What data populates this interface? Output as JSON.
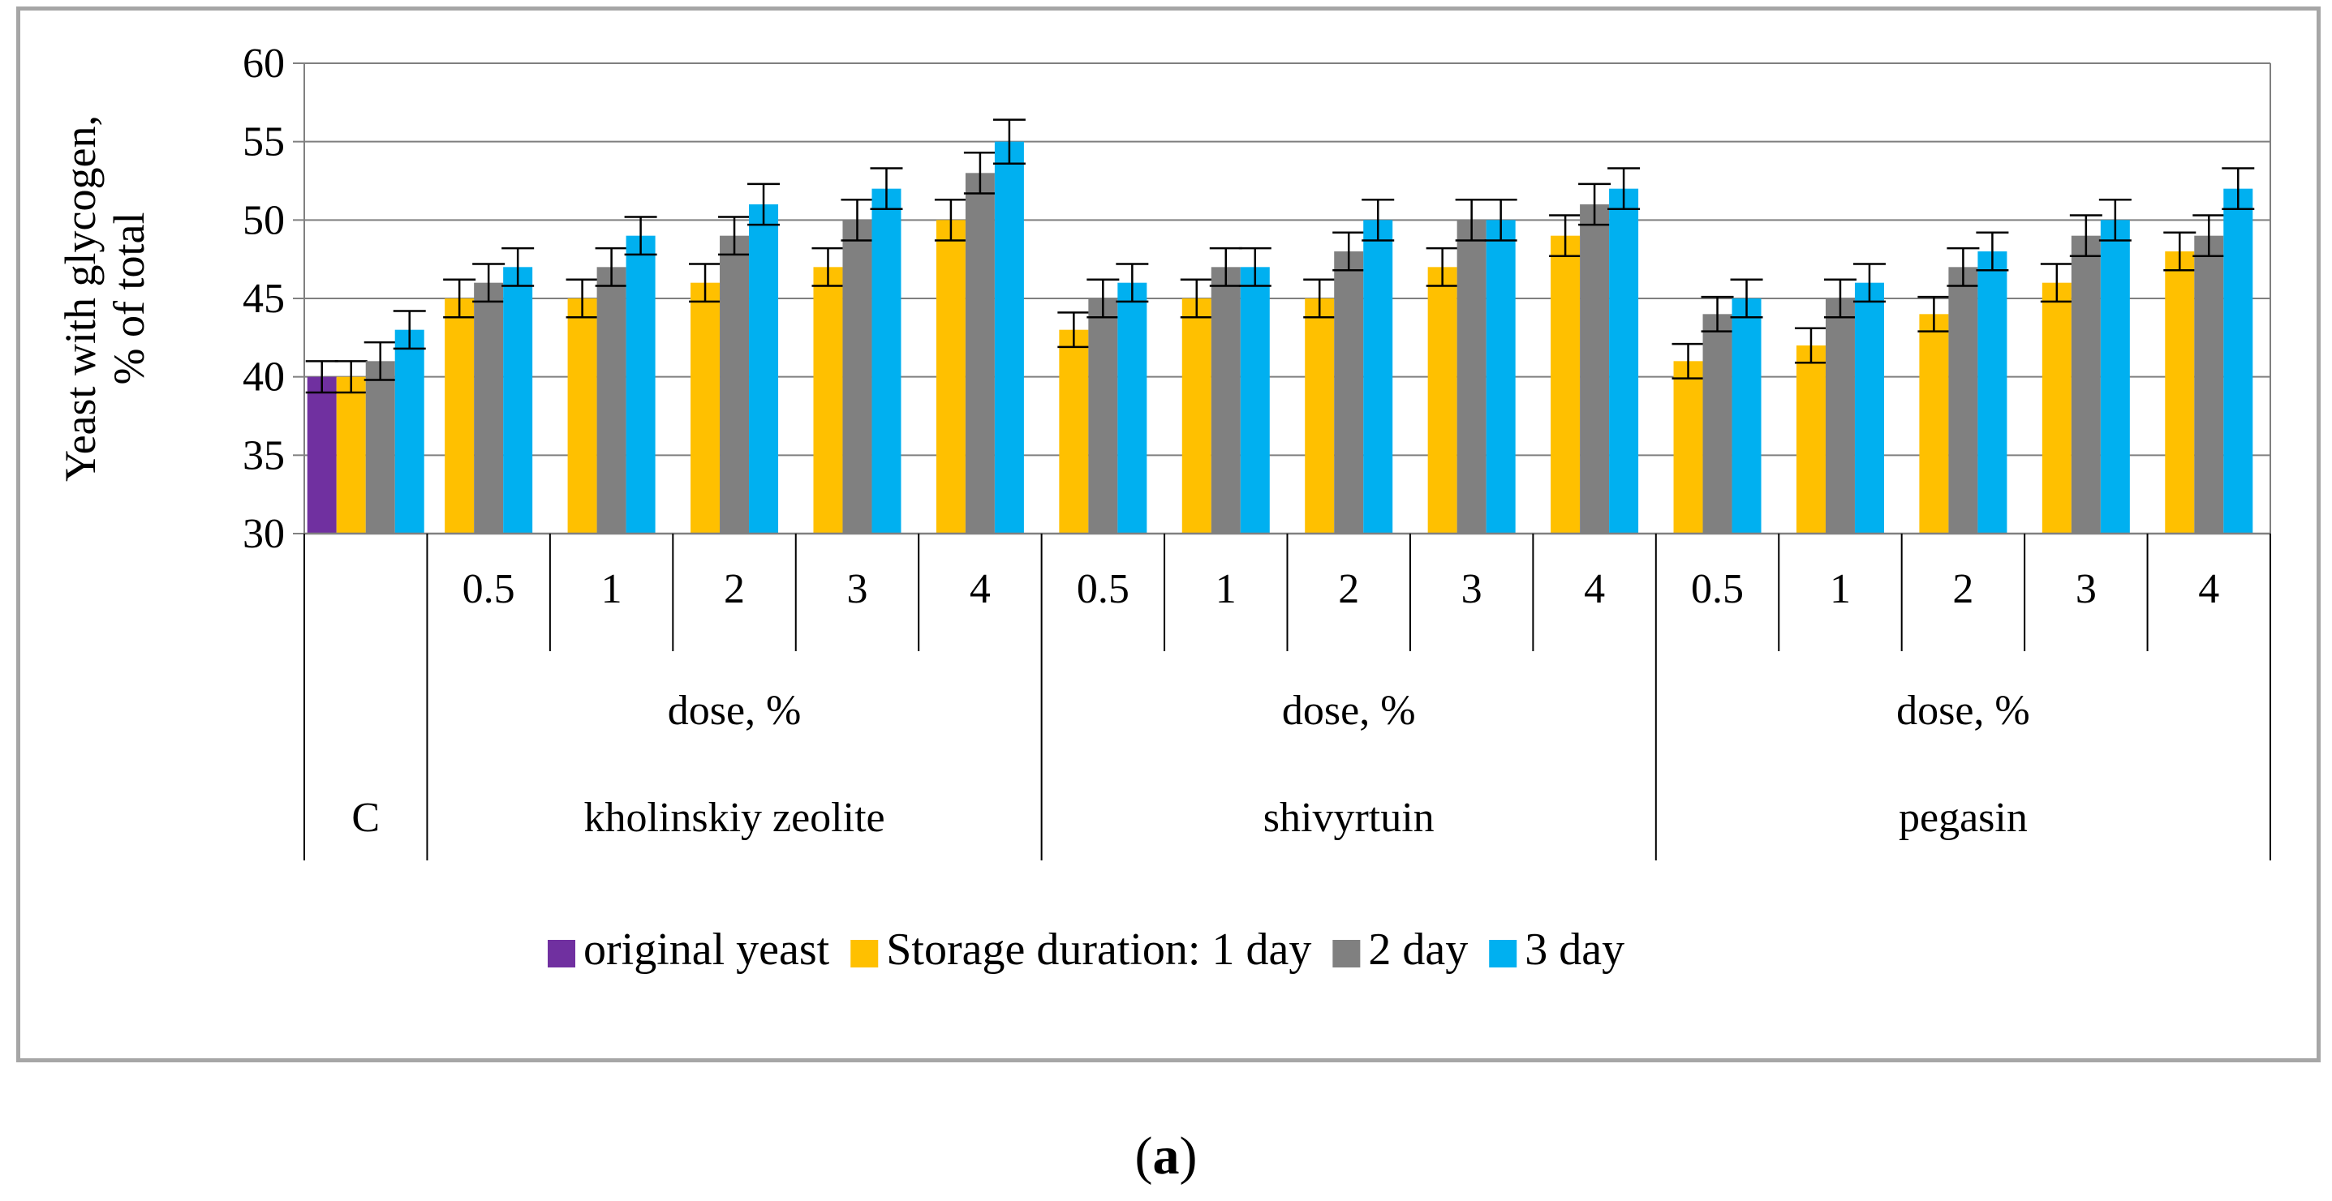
{
  "caption": {
    "open": "(",
    "letter": "a",
    "close": ")"
  },
  "chart_data": {
    "type": "bar",
    "title": "",
    "ylabel_line1": "Yeast with glycogen,",
    "ylabel_line2": "% of total",
    "ylim": [
      30,
      60
    ],
    "yticks": [
      30,
      35,
      40,
      45,
      50,
      55,
      60
    ],
    "grid": true,
    "legend_position": "bottom",
    "colors": {
      "original yeast": "#7030a0",
      "day1": "#ffc000",
      "day2": "#808080",
      "day3": "#00b0f0",
      "axis": "#808080",
      "grid": "#7f7f7f"
    },
    "legend": [
      {
        "key": "original",
        "label": "original yeast",
        "color": "#7030a0"
      },
      {
        "key": "day1",
        "label": "Storage duration: 1 day",
        "color": "#ffc000"
      },
      {
        "key": "day2",
        "label": "2 day",
        "color": "#808080"
      },
      {
        "key": "day3",
        "label": "3 day",
        "color": "#00b0f0"
      }
    ],
    "groups": [
      {
        "name": "C",
        "dose_label": "",
        "doses": [
          ""
        ]
      },
      {
        "name": "kholinskiy zeolite",
        "dose_label": "dose, %",
        "doses": [
          "0.5",
          "1",
          "2",
          "3",
          "4"
        ]
      },
      {
        "name": "shivyrtuin",
        "dose_label": "dose, %",
        "doses": [
          "0.5",
          "1",
          "2",
          "3",
          "4"
        ]
      },
      {
        "name": "pegasin",
        "dose_label": "dose, %",
        "doses": [
          "0.5",
          "1",
          "2",
          "3",
          "4"
        ]
      }
    ],
    "categories": [
      {
        "group": "C",
        "dose": "",
        "values": {
          "original": 40,
          "day1": 40,
          "day2": 41,
          "day3": 43
        },
        "errors": {
          "original": 1,
          "day1": 1,
          "day2": 1.2,
          "day3": 1.2
        }
      },
      {
        "group": "kholinskiy zeolite",
        "dose": "0.5",
        "values": {
          "day1": 45,
          "day2": 46,
          "day3": 47
        },
        "errors": {
          "day1": 1.2,
          "day2": 1.2,
          "day3": 1.2
        }
      },
      {
        "group": "kholinskiy zeolite",
        "dose": "1",
        "values": {
          "day1": 45,
          "day2": 47,
          "day3": 49
        },
        "errors": {
          "day1": 1.2,
          "day2": 1.2,
          "day3": 1.2
        }
      },
      {
        "group": "kholinskiy zeolite",
        "dose": "2",
        "values": {
          "day1": 46,
          "day2": 49,
          "day3": 51
        },
        "errors": {
          "day1": 1.2,
          "day2": 1.2,
          "day3": 1.3
        }
      },
      {
        "group": "kholinskiy zeolite",
        "dose": "3",
        "values": {
          "day1": 47,
          "day2": 50,
          "day3": 52
        },
        "errors": {
          "day1": 1.2,
          "day2": 1.3,
          "day3": 1.3
        }
      },
      {
        "group": "kholinskiy zeolite",
        "dose": "4",
        "values": {
          "day1": 50,
          "day2": 53,
          "day3": 55
        },
        "errors": {
          "day1": 1.3,
          "day2": 1.3,
          "day3": 1.4
        }
      },
      {
        "group": "shivyrtuin",
        "dose": "0.5",
        "values": {
          "day1": 43,
          "day2": 45,
          "day3": 46
        },
        "errors": {
          "day1": 1.1,
          "day2": 1.2,
          "day3": 1.2
        }
      },
      {
        "group": "shivyrtuin",
        "dose": "1",
        "values": {
          "day1": 45,
          "day2": 47,
          "day3": 47
        },
        "errors": {
          "day1": 1.2,
          "day2": 1.2,
          "day3": 1.2
        }
      },
      {
        "group": "shivyrtuin",
        "dose": "2",
        "values": {
          "day1": 45,
          "day2": 48,
          "day3": 50
        },
        "errors": {
          "day1": 1.2,
          "day2": 1.2,
          "day3": 1.3
        }
      },
      {
        "group": "shivyrtuin",
        "dose": "3",
        "values": {
          "day1": 47,
          "day2": 50,
          "day3": 50
        },
        "errors": {
          "day1": 1.2,
          "day2": 1.3,
          "day3": 1.3
        }
      },
      {
        "group": "shivyrtuin",
        "dose": "4",
        "values": {
          "day1": 49,
          "day2": 51,
          "day3": 52
        },
        "errors": {
          "day1": 1.3,
          "day2": 1.3,
          "day3": 1.3
        }
      },
      {
        "group": "pegasin",
        "dose": "0.5",
        "values": {
          "day1": 41,
          "day2": 44,
          "day3": 45
        },
        "errors": {
          "day1": 1.1,
          "day2": 1.1,
          "day3": 1.2
        }
      },
      {
        "group": "pegasin",
        "dose": "1",
        "values": {
          "day1": 42,
          "day2": 45,
          "day3": 46
        },
        "errors": {
          "day1": 1.1,
          "day2": 1.2,
          "day3": 1.2
        }
      },
      {
        "group": "pegasin",
        "dose": "2",
        "values": {
          "day1": 44,
          "day2": 47,
          "day3": 48
        },
        "errors": {
          "day1": 1.1,
          "day2": 1.2,
          "day3": 1.2
        }
      },
      {
        "group": "pegasin",
        "dose": "3",
        "values": {
          "day1": 46,
          "day2": 49,
          "day3": 50
        },
        "errors": {
          "day1": 1.2,
          "day2": 1.3,
          "day3": 1.3
        }
      },
      {
        "group": "pegasin",
        "dose": "4",
        "values": {
          "day1": 48,
          "day2": 49,
          "day3": 52
        },
        "errors": {
          "day1": 1.2,
          "day2": 1.3,
          "day3": 1.3
        }
      }
    ]
  }
}
